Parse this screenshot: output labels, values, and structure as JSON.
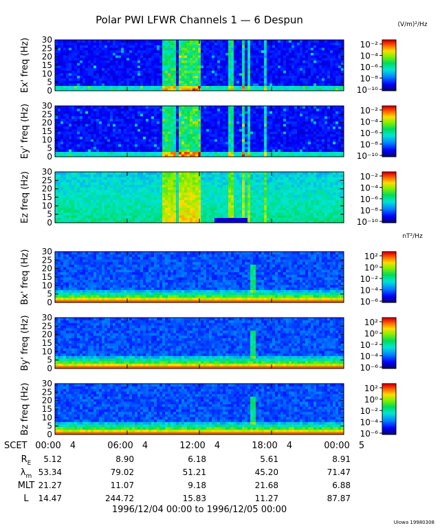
{
  "title": "Polar PWI LFWR Channels 1 — 6 Despun",
  "chart_data": [
    {
      "type": "heatmap",
      "panels": [
        {
          "ylabel": "Ex' freq (Hz)",
          "ylim": [
            0,
            30
          ],
          "yticks": [
            "0",
            "5",
            "10",
            "15",
            "20",
            "25",
            "30"
          ],
          "kind": "electric"
        },
        {
          "ylabel": "Ey' freq (Hz)",
          "ylim": [
            0,
            30
          ],
          "yticks": [
            "0",
            "5",
            "10",
            "15",
            "20",
            "25",
            "30"
          ],
          "kind": "electric"
        },
        {
          "ylabel": "Ez freq (Hz)",
          "ylim": [
            0,
            30
          ],
          "yticks": [
            "0",
            "5",
            "10",
            "15",
            "20",
            "25",
            "30"
          ],
          "kind": "electric_z"
        },
        {
          "ylabel": "Bx' freq (Hz)",
          "ylim": [
            0,
            30
          ],
          "yticks": [
            "0",
            "5",
            "10",
            "15",
            "20",
            "25",
            "30"
          ],
          "kind": "magnetic"
        },
        {
          "ylabel": "By' freq (Hz)",
          "ylim": [
            0,
            30
          ],
          "yticks": [
            "0",
            "5",
            "10",
            "15",
            "20",
            "25",
            "30"
          ],
          "kind": "magnetic"
        },
        {
          "ylabel": "Bz freq (Hz)",
          "ylim": [
            0,
            30
          ],
          "yticks": [
            "0",
            "5",
            "10",
            "15",
            "20",
            "25",
            "30"
          ],
          "kind": "magnetic"
        }
      ],
      "colorbars": [
        {
          "unit": "(V/m)²/Hz",
          "scale": "log",
          "ticks": [
            "10⁻²",
            "10⁻⁴",
            "10⁻⁶",
            "10⁻⁸",
            "10⁻¹⁰"
          ]
        },
        {
          "unit": "nT²/Hz",
          "scale": "log",
          "ticks": [
            "10²",
            "10⁰",
            "10⁻²",
            "10⁻⁴",
            "10⁻⁶"
          ]
        }
      ],
      "x_axis": {
        "row_label": "SCET",
        "ticks": [
          {
            "time": "00:00",
            "day": "4"
          },
          {
            "time": "06:00",
            "day": "4"
          },
          {
            "time": "12:00",
            "day": "4"
          },
          {
            "time": "18:00",
            "day": "4"
          },
          {
            "time": "00:00",
            "day": "5"
          }
        ]
      },
      "ephemeris": [
        {
          "label": "R",
          "sub": "E",
          "values": [
            "5.12",
            "8.90",
            "6.18",
            "5.61",
            "8.91"
          ]
        },
        {
          "label": "λ",
          "sub": "m",
          "values": [
            "53.34",
            "79.02",
            "51.21",
            "45.20",
            "71.47"
          ]
        },
        {
          "label": "MLT",
          "sub": "",
          "values": [
            "21.27",
            "11.07",
            "9.18",
            "21.68",
            "6.88"
          ]
        },
        {
          "label": "L",
          "sub": "",
          "values": [
            "14.47",
            "244.72",
            "15.83",
            "11.27",
            "87.87"
          ]
        }
      ],
      "date_range": "1996/12/04 00:00 to 1996/12/05 00:00",
      "credit": "UIowa 19980308"
    }
  ]
}
